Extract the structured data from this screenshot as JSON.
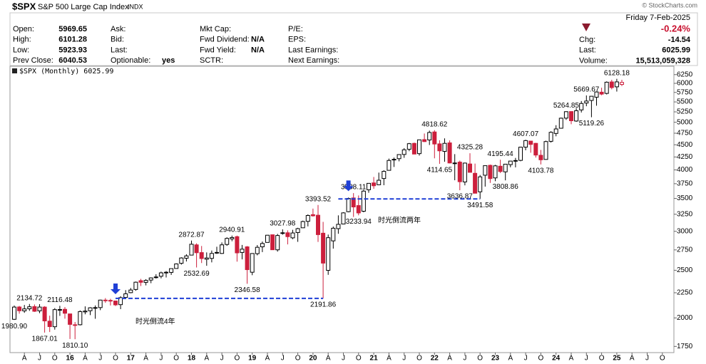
{
  "header": {
    "symbol": "$SPX",
    "name": "S&P 500 Large Cap Index",
    "exchange": "INDX",
    "copyright": "© StockCharts.com",
    "date": "Friday  7-Feb-2025",
    "change_pct": "-0.24%",
    "columns": [
      [
        {
          "label": "Open:",
          "value": "5969.65"
        },
        {
          "label": "High:",
          "value": "6101.28"
        },
        {
          "label": "Low:",
          "value": "5923.93"
        },
        {
          "label": "Prev Close:",
          "value": "6040.53"
        }
      ],
      [
        {
          "label": "Ask:"
        },
        {
          "label": "Bid:"
        },
        {
          "label": "Last:"
        },
        {
          "label": "Optionable:",
          "value": "yes"
        }
      ],
      [
        {
          "label": "Mkt Cap:"
        },
        {
          "label": "Fwd Dividend:",
          "value": "N/A"
        },
        {
          "label": "Fwd Yield:",
          "value": "N/A"
        },
        {
          "label": "SCTR:"
        }
      ],
      [
        {
          "label": "P/E:"
        },
        {
          "label": "EPS:"
        },
        {
          "label": "Last Earnings:"
        },
        {
          "label": "Next Earnings:"
        }
      ]
    ],
    "right": [
      {
        "label": "Chg:",
        "value": "-14.54"
      },
      {
        "label": "Last:",
        "value": "6025.99"
      },
      {
        "label": "Volume:",
        "value": "15,513,059,328"
      }
    ]
  },
  "chart_data": {
    "type": "candlestick",
    "legend": "$SPX (Monthly) 6025.99",
    "log_scale": true,
    "grid": false,
    "up_color": "#000000",
    "down_color": "#cc1f3c",
    "annotation_color": "#1f3fd6",
    "annotations": [
      "时光倒流4年",
      "时光倒流两年"
    ],
    "ylim": [
      1700,
      6500
    ],
    "yticks": [
      1750,
      2000,
      2250,
      2500,
      2750,
      3000,
      3250,
      3500,
      3750,
      4000,
      4250,
      4500,
      4750,
      5000,
      5250,
      5500,
      5750,
      6000,
      6250
    ],
    "categories": [
      null,
      null,
      "A",
      null,
      null,
      "J",
      null,
      null,
      "O",
      null,
      null,
      "16",
      null,
      null,
      "A",
      null,
      null,
      "J",
      null,
      null,
      "O",
      null,
      null,
      "17",
      null,
      null,
      "A",
      null,
      null,
      "J",
      null,
      null,
      "O",
      null,
      null,
      "18",
      null,
      null,
      "A",
      null,
      null,
      "J",
      null,
      null,
      "O",
      null,
      null,
      "19",
      null,
      null,
      "A",
      null,
      null,
      "J",
      null,
      null,
      "O",
      null,
      null,
      "20",
      null,
      null,
      "A",
      null,
      null,
      "J",
      null,
      null,
      "O",
      null,
      null,
      "21",
      null,
      null,
      "A",
      null,
      null,
      "J",
      null,
      null,
      "O",
      null,
      null,
      "22",
      null,
      null,
      "A",
      null,
      null,
      "J",
      null,
      null,
      "O",
      null,
      null,
      "23",
      null,
      null,
      "A",
      null,
      null,
      "J",
      null,
      null,
      "O",
      null,
      null,
      "24",
      null,
      null,
      "A",
      null,
      null,
      "J",
      null,
      null,
      "O",
      null,
      null,
      "25",
      null,
      null,
      "A",
      null,
      null,
      "J",
      null,
      null,
      "O",
      null
    ],
    "open": [
      1987,
      2105,
      2067,
      2087,
      2109,
      2067,
      2104,
      1970,
      1919,
      2080,
      2082,
      2038,
      1937,
      1937,
      2057,
      2068,
      2094,
      2099,
      2174,
      2171,
      2165,
      2128,
      2201,
      2251,
      2285,
      2381,
      2362,
      2388,
      2415,
      2431,
      2477,
      2475,
      2521,
      2583,
      2645,
      2684,
      2816,
      2716,
      2633,
      2643,
      2718,
      2705,
      2821,
      2896,
      2926,
      2717,
      2790,
      2477,
      2702,
      2790,
      2848,
      2952,
      2751,
      2971,
      2980,
      2910,
      2983,
      3050,
      3144,
      3244,
      3235,
      2974,
      2499,
      2869,
      3038,
      3105,
      3289,
      3508,
      3385,
      3296,
      3645,
      3764,
      3731,
      3842,
      3992,
      4192,
      4216,
      4300,
      4406,
      4529,
      4317,
      4610,
      4602,
      4778,
      4519,
      4363,
      4540,
      4130,
      4149,
      3781,
      4113,
      3937,
      3610,
      3902,
      4087,
      3853,
      4070,
      3964,
      4100,
      4166,
      4183,
      4450,
      4578,
      4530,
      4284,
      4201,
      4573,
      4745,
      4862,
      5098,
      5257,
      5029,
      5298,
      5471,
      5538,
      5623,
      5757,
      5724,
      6040,
      5903,
      5969.65,
      null,
      null,
      null,
      null,
      null,
      null,
      null,
      null,
      null
    ],
    "high": [
      2120,
      2115,
      2125,
      2134.72,
      2130,
      2133,
      2113,
      2021,
      2094,
      2116.48,
      2104,
      2038,
      1962,
      2072,
      2111,
      2103,
      2120,
      2178,
      2194,
      2187,
      2169,
      2214,
      2278,
      2301,
      2371,
      2401,
      2398,
      2418,
      2454,
      2484,
      2491,
      2520,
      2582,
      2657,
      2695,
      2872.87,
      2836,
      2801,
      2718,
      2742,
      2791,
      2848,
      2917,
      2940.91,
      2940,
      2815,
      2800,
      2708,
      2813,
      2860,
      2949,
      2955,
      2964,
      3027.98,
      3014,
      3022,
      3050,
      3154,
      3248,
      3337,
      3393.52,
      3136,
      2955,
      3068,
      3233,
      3280,
      3514,
      3588.11,
      3549,
      3645,
      3760,
      3870,
      3950,
      3994,
      4218,
      4238,
      4302,
      4430,
      4538,
      4546,
      4608,
      4744,
      4808,
      4818.62,
      4595,
      4637,
      4593,
      4307,
      4178,
      4140,
      4325.28,
      4120,
      3906,
      4080,
      4101,
      4095,
      4195.44,
      4110,
      4170,
      4231,
      4458,
      4607.07,
      4584,
      4541,
      4393,
      4587,
      4794,
      4932,
      5111,
      5264.85,
      5263.95,
      5342,
      5523,
      5669.67,
      5652,
      5768,
      5878,
      6054,
      6100,
      6128.18,
      6101.28,
      null,
      null,
      null,
      null,
      null,
      null,
      null,
      null,
      null
    ],
    "low": [
      1980.9,
      2040,
      2048,
      2067,
      2057,
      2045,
      1867.01,
      1872,
      1893,
      2019,
      1993,
      1812,
      1810.1,
      1931,
      2034,
      2026,
      1992,
      2074,
      2147,
      2120,
      2114,
      2084,
      2187,
      2245,
      2271,
      2322,
      2329,
      2353,
      2405,
      2407,
      2417,
      2446,
      2520,
      2567,
      2605,
      2682,
      2532.69,
      2586,
      2553,
      2594,
      2698,
      2698,
      2803,
      2864,
      2603,
      2631,
      2346.58,
      2443,
      2681,
      2722,
      2848,
      2750,
      2728,
      2953,
      2822,
      2892,
      2856,
      3050,
      3070,
      3214,
      2855,
      2191.86,
      2447,
      2767,
      2966,
      3101,
      3280,
      3209,
      3233.94,
      3280,
      3594,
      3662,
      3725,
      3723,
      3992,
      4056,
      4164,
      4233,
      4367,
      4305,
      4279,
      4560,
      4495,
      4223,
      4114.65,
      4157,
      4124,
      3811,
      3636.87,
      3721,
      3955,
      3585,
      3491.58,
      3699,
      3764,
      3794,
      3943,
      3808.86,
      4049,
      4048,
      4166,
      4385,
      4335,
      4238,
      4103.78,
      4197,
      4546,
      4682,
      4853,
      5056,
      4954,
      5011,
      5234,
      5390,
      5119.26,
      5403,
      5674,
      5696,
      5833,
      5773,
      5923.93,
      null,
      null,
      null,
      null,
      null,
      null,
      null,
      null,
      null
    ],
    "close": [
      2104,
      2068,
      2086,
      2107,
      2063,
      2104,
      1972,
      1920,
      2079,
      2080,
      2044,
      1940,
      1932,
      2060,
      2065,
      2097,
      2099,
      2174,
      2171,
      2168,
      2126,
      2199,
      2239,
      2279,
      2364,
      2363,
      2384,
      2412,
      2423,
      2470,
      2472,
      2519,
      2575,
      2648,
      2674,
      2824,
      2714,
      2641,
      2648,
      2705,
      2718,
      2816,
      2902,
      2914,
      2712,
      2760,
      2507,
      2704,
      2784,
      2834,
      2946,
      2752,
      2942,
      2980,
      2926,
      2977,
      3038,
      3141,
      3231,
      3226,
      2954,
      2585,
      2912,
      3044,
      3100,
      3271,
      3500,
      3363,
      3270,
      3622,
      3756,
      3714,
      3811,
      3973,
      4181,
      4204,
      4298,
      4395,
      4523,
      4308,
      4605,
      4567,
      4766,
      4516,
      4374,
      4530,
      4132,
      4132,
      3785,
      4130,
      3955,
      3586,
      3872,
      4080,
      3840,
      4077,
      3970,
      4109,
      4169,
      4180,
      4450,
      4589,
      4508,
      4288,
      4194,
      4568,
      4770,
      4846,
      5096,
      5254,
      5036,
      5278,
      5460,
      5522,
      5648,
      5762,
      5705,
      6032,
      5882,
      6041,
      6025.99,
      null,
      null,
      null,
      null,
      null,
      null,
      null,
      null,
      null
    ],
    "high_labels": [
      {
        "value": 2134.72,
        "label": "2134.72"
      },
      {
        "value": 2116.48,
        "label": "2116.48"
      },
      {
        "value": 2872.87,
        "label": "2872.87"
      },
      {
        "value": 2940.91,
        "label": "2940.91"
      },
      {
        "value": 3027.98,
        "label": "3027.98"
      },
      {
        "value": 3393.52,
        "label": "3393.52"
      },
      {
        "value": 3588.11,
        "label": "3588.11"
      },
      {
        "value": 4818.62,
        "label": "4818.62"
      },
      {
        "value": 4325.28,
        "label": "4325.28"
      },
      {
        "value": 4195.44,
        "label": "4195.44"
      },
      {
        "value": 4607.07,
        "label": "4607.07"
      },
      {
        "value": 5264.85,
        "label": "5264.85"
      },
      {
        "value": 5669.67,
        "label": "5669.67"
      },
      {
        "value": 6128.18,
        "label": "6128.18"
      }
    ],
    "low_labels": [
      {
        "value": 1980.9,
        "label": "1980.90"
      },
      {
        "value": 1867.01,
        "label": "1867.01"
      },
      {
        "value": 1810.1,
        "label": "1810.10"
      },
      {
        "value": 2532.69,
        "label": "2532.69"
      },
      {
        "value": 2346.58,
        "label": "2346.58"
      },
      {
        "value": 2191.86,
        "label": "2191.86"
      },
      {
        "value": 3233.94,
        "label": "3233.94"
      },
      {
        "value": 4114.65,
        "label": "4114.65"
      },
      {
        "value": 3636.87,
        "label": "3636.87"
      },
      {
        "value": 3491.58,
        "label": "3491.58"
      },
      {
        "value": 3808.86,
        "label": "3808.86"
      },
      {
        "value": 4103.78,
        "label": "4103.78"
      },
      {
        "value": 5119.26,
        "label": "5119.26"
      }
    ]
  }
}
